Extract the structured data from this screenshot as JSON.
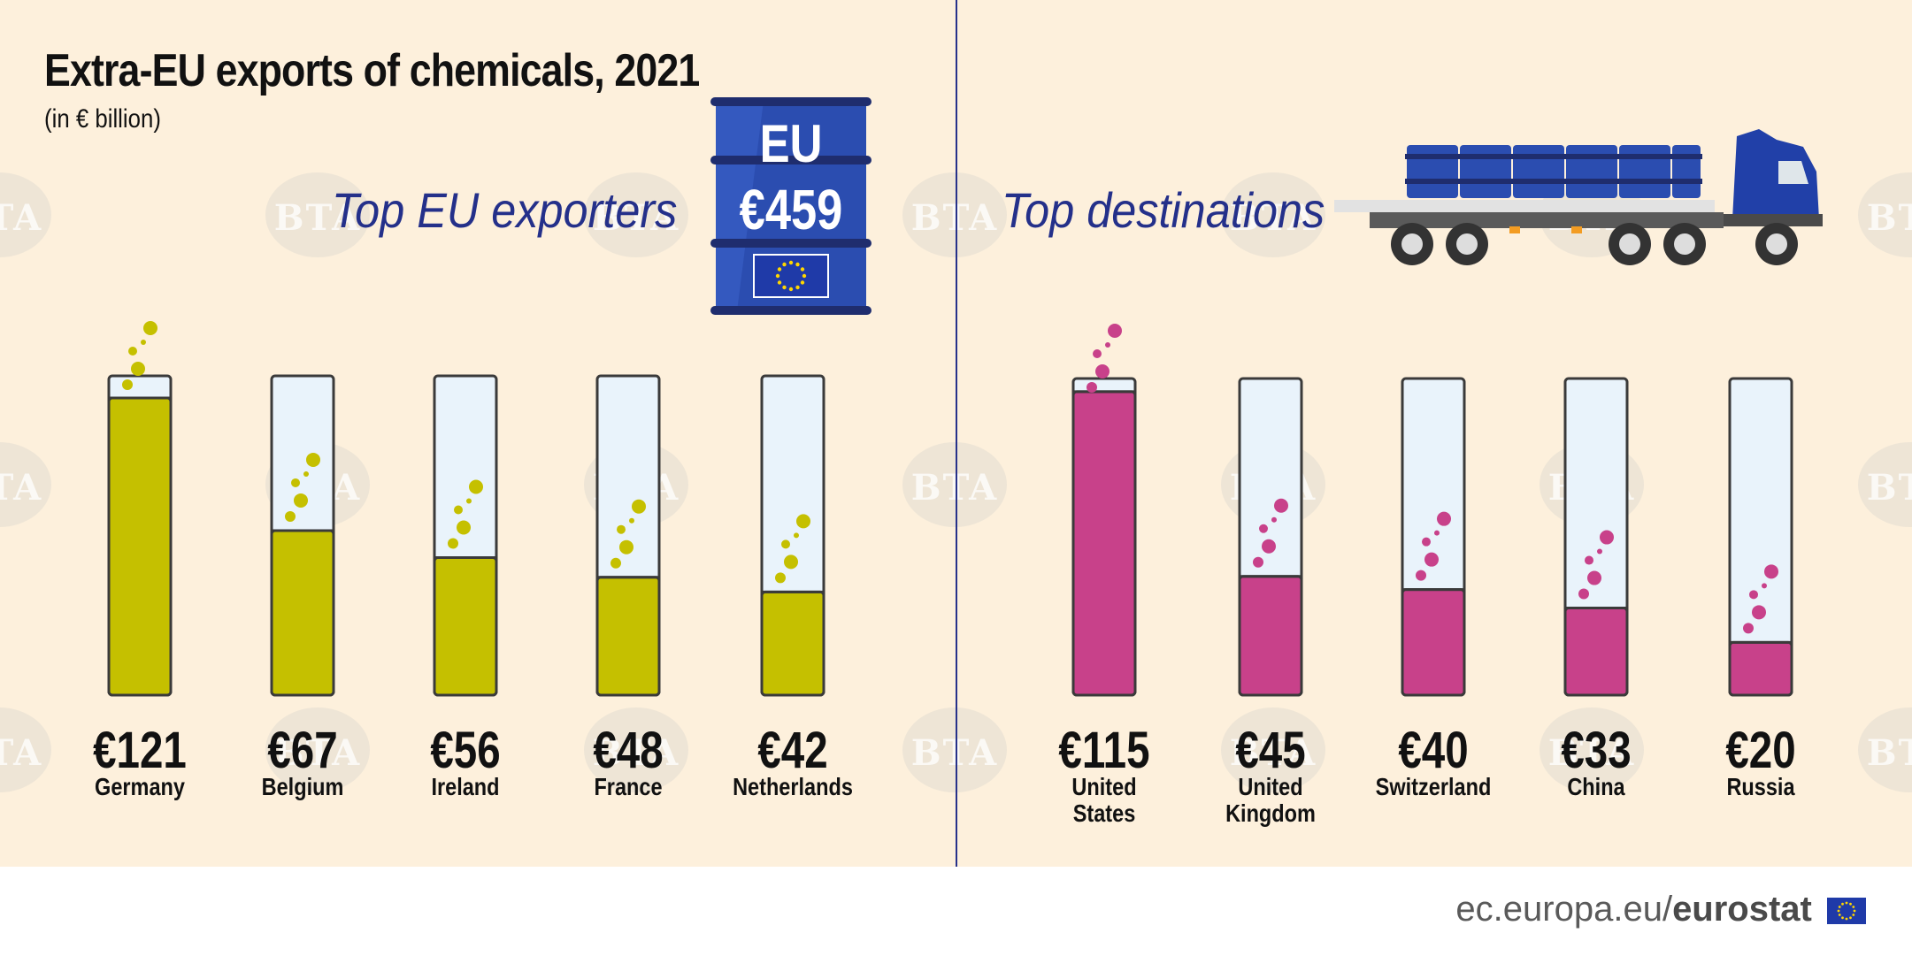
{
  "header": {
    "title": "Extra-EU exports of chemicals, 2021",
    "subtitle": "(in € billion)"
  },
  "exporters": {
    "heading": "Top EU exporters",
    "eu_total_label": "EU",
    "eu_total_value": "€459"
  },
  "destinations": {
    "heading": "Top destinations"
  },
  "watermark_text": "BTA",
  "footer": {
    "site": "ec.europa.eu/",
    "brand": "eurostat"
  },
  "colors": {
    "exporters": "#c5c000",
    "destinations": "#c8418a",
    "tube_empty": "#e9f3fb",
    "heading": "#24308a",
    "background": "#fdf0dc"
  },
  "chart_data": [
    {
      "type": "bar",
      "title": "Top EU exporters",
      "categories": [
        "Germany",
        "Belgium",
        "Ireland",
        "France",
        "Netherlands"
      ],
      "value_labels": [
        "€121",
        "€67",
        "€56",
        "€48",
        "€42"
      ],
      "values": [
        121,
        67,
        56,
        48,
        42
      ],
      "unit": "€ billion",
      "ylim": [
        0,
        130
      ]
    },
    {
      "type": "bar",
      "title": "Top destinations",
      "categories": [
        "United States",
        "United Kingdom",
        "Switzerland",
        "China",
        "Russia"
      ],
      "category_lines": [
        [
          "United",
          "States"
        ],
        [
          "United",
          "Kingdom"
        ],
        [
          "Switzerland"
        ],
        [
          "China"
        ],
        [
          "Russia"
        ]
      ],
      "value_labels": [
        "€115",
        "€45",
        "€40",
        "€33",
        "€20"
      ],
      "values": [
        115,
        45,
        40,
        33,
        20
      ],
      "unit": "€ billion",
      "ylim": [
        0,
        120
      ]
    }
  ]
}
